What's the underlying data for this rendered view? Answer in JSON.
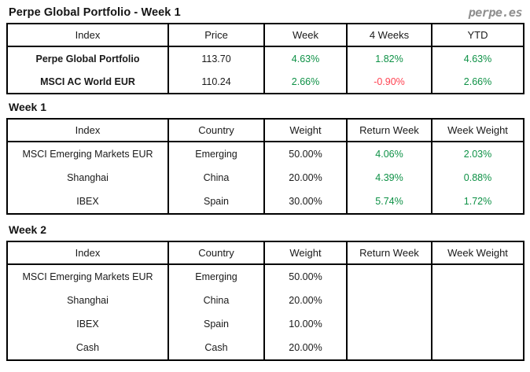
{
  "header": {
    "title": "Perpe Global Portfolio - Week 1",
    "logo": "perpe.es"
  },
  "colors": {
    "positive_green": "#0e9146",
    "negative_red": "#ff4150",
    "logo_gray": "#8e8e8e",
    "border_black": "#000000"
  },
  "summary_table": {
    "columns": [
      "Index",
      "Price",
      "Week",
      "4 Weeks",
      "YTD"
    ],
    "rows": [
      [
        "Perpe Global Portfolio",
        "113.70",
        "4.63%",
        "1.82%",
        "4.63%"
      ],
      [
        "MSCI AC World EUR",
        "110.24",
        "2.66%",
        "-0.90%",
        "2.66%"
      ]
    ]
  },
  "week1_section": {
    "label": "Week 1",
    "columns": [
      "Index",
      "Country",
      "Weight",
      "Return Week",
      "Week Weight"
    ],
    "rows": [
      [
        "MSCI Emerging Markets EUR",
        "Emerging",
        "50.00%",
        "4.06%",
        "2.03%"
      ],
      [
        "Shanghai",
        "China",
        "20.00%",
        "4.39%",
        "0.88%"
      ],
      [
        "IBEX",
        "Spain",
        "30.00%",
        "5.74%",
        "1.72%"
      ]
    ]
  },
  "week2_section": {
    "label": "Week 2",
    "columns": [
      "Index",
      "Country",
      "Weight",
      "Return Week",
      "Week Weight"
    ],
    "rows": [
      [
        "MSCI Emerging Markets EUR",
        "Emerging",
        "50.00%",
        "",
        ""
      ],
      [
        "Shanghai",
        "China",
        "20.00%",
        "",
        ""
      ],
      [
        "IBEX",
        "Spain",
        "10.00%",
        "",
        ""
      ],
      [
        "Cash",
        "Cash",
        "20.00%",
        "",
        ""
      ]
    ]
  }
}
